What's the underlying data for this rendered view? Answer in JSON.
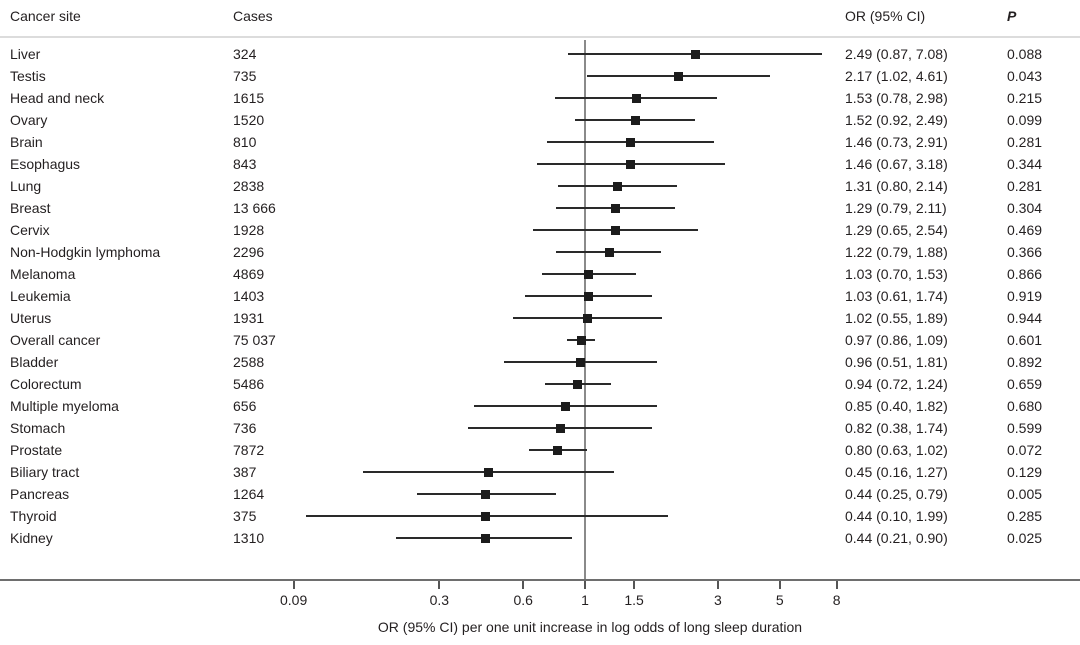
{
  "colors": {
    "text": "#231f20",
    "marker": "#1c1c1c",
    "ci_line": "#2a2a2a",
    "axis_line": "#6e6e6e",
    "reference_line": "#8a8a8a",
    "header_rule": "#dcdcdc",
    "background": "#ffffff"
  },
  "chart_data": {
    "type": "forest",
    "column_headers": {
      "site": "Cancer site",
      "cases": "Cases",
      "or_ci": "OR (95% CI)",
      "p": "P"
    },
    "xlabel": "OR (95% CI) per one unit increase in log odds of long sleep duration",
    "x_axis": {
      "scale": "log",
      "tick_values": [
        0.09,
        0.3,
        0.6,
        1,
        1.5,
        3,
        5,
        8
      ],
      "tick_labels": [
        "0.09",
        "0.3",
        "0.6",
        "1",
        "1.5",
        "3",
        "5",
        "8"
      ],
      "reference_line": 1
    },
    "legend": null,
    "grid": false,
    "rows": [
      {
        "site": "Liver",
        "cases": "324",
        "or": 2.49,
        "lo": 0.87,
        "hi": 7.08,
        "or_ci": "2.49 (0.87, 7.08)",
        "p": "0.088"
      },
      {
        "site": "Testis",
        "cases": "735",
        "or": 2.17,
        "lo": 1.02,
        "hi": 4.61,
        "or_ci": "2.17 (1.02, 4.61)",
        "p": "0.043"
      },
      {
        "site": "Head and neck",
        "cases": "1615",
        "or": 1.53,
        "lo": 0.78,
        "hi": 2.98,
        "or_ci": "1.53 (0.78, 2.98)",
        "p": "0.215"
      },
      {
        "site": "Ovary",
        "cases": "1520",
        "or": 1.52,
        "lo": 0.92,
        "hi": 2.49,
        "or_ci": "1.52 (0.92, 2.49)",
        "p": "0.099"
      },
      {
        "site": "Brain",
        "cases": "810",
        "or": 1.46,
        "lo": 0.73,
        "hi": 2.91,
        "or_ci": "1.46 (0.73, 2.91)",
        "p": "0.281"
      },
      {
        "site": "Esophagus",
        "cases": "843",
        "or": 1.46,
        "lo": 0.67,
        "hi": 3.18,
        "or_ci": "1.46 (0.67, 3.18)",
        "p": "0.344"
      },
      {
        "site": "Lung",
        "cases": "2838",
        "or": 1.31,
        "lo": 0.8,
        "hi": 2.14,
        "or_ci": "1.31 (0.80, 2.14)",
        "p": "0.281"
      },
      {
        "site": "Breast",
        "cases": "13 666",
        "or": 1.29,
        "lo": 0.79,
        "hi": 2.11,
        "or_ci": "1.29 (0.79, 2.11)",
        "p": "0.304"
      },
      {
        "site": "Cervix",
        "cases": "1928",
        "or": 1.29,
        "lo": 0.65,
        "hi": 2.54,
        "or_ci": "1.29 (0.65, 2.54)",
        "p": "0.469"
      },
      {
        "site": "Non-Hodgkin lymphoma",
        "cases": "2296",
        "or": 1.22,
        "lo": 0.79,
        "hi": 1.88,
        "or_ci": "1.22 (0.79, 1.88)",
        "p": "0.366"
      },
      {
        "site": "Melanoma",
        "cases": "4869",
        "or": 1.03,
        "lo": 0.7,
        "hi": 1.53,
        "or_ci": "1.03 (0.70, 1.53)",
        "p": "0.866"
      },
      {
        "site": "Leukemia",
        "cases": "1403",
        "or": 1.03,
        "lo": 0.61,
        "hi": 1.74,
        "or_ci": "1.03 (0.61, 1.74)",
        "p": "0.919"
      },
      {
        "site": "Uterus",
        "cases": "1931",
        "or": 1.02,
        "lo": 0.55,
        "hi": 1.89,
        "or_ci": "1.02 (0.55, 1.89)",
        "p": "0.944"
      },
      {
        "site": "Overall cancer",
        "cases": "75 037",
        "or": 0.97,
        "lo": 0.86,
        "hi": 1.09,
        "or_ci": "0.97 (0.86, 1.09)",
        "p": "0.601"
      },
      {
        "site": "Bladder",
        "cases": "2588",
        "or": 0.96,
        "lo": 0.51,
        "hi": 1.81,
        "or_ci": "0.96 (0.51, 1.81)",
        "p": "0.892"
      },
      {
        "site": "Colorectum",
        "cases": "5486",
        "or": 0.94,
        "lo": 0.72,
        "hi": 1.24,
        "or_ci": "0.94 (0.72, 1.24)",
        "p": "0.659"
      },
      {
        "site": "Multiple myeloma",
        "cases": "656",
        "or": 0.85,
        "lo": 0.4,
        "hi": 1.82,
        "or_ci": "0.85 (0.40, 1.82)",
        "p": "0.680"
      },
      {
        "site": "Stomach",
        "cases": "736",
        "or": 0.82,
        "lo": 0.38,
        "hi": 1.74,
        "or_ci": "0.82 (0.38, 1.74)",
        "p": "0.599"
      },
      {
        "site": "Prostate",
        "cases": "7872",
        "or": 0.8,
        "lo": 0.63,
        "hi": 1.02,
        "or_ci": "0.80 (0.63, 1.02)",
        "p": "0.072"
      },
      {
        "site": "Biliary tract",
        "cases": "387",
        "or": 0.45,
        "lo": 0.16,
        "hi": 1.27,
        "or_ci": "0.45 (0.16, 1.27)",
        "p": "0.129"
      },
      {
        "site": "Pancreas",
        "cases": "1264",
        "or": 0.44,
        "lo": 0.25,
        "hi": 0.79,
        "or_ci": "0.44 (0.25, 0.79)",
        "p": "0.005"
      },
      {
        "site": "Thyroid",
        "cases": "375",
        "or": 0.44,
        "lo": 0.1,
        "hi": 1.99,
        "or_ci": "0.44 (0.10, 1.99)",
        "p": "0.285"
      },
      {
        "site": "Kidney",
        "cases": "1310",
        "or": 0.44,
        "lo": 0.21,
        "hi": 0.9,
        "or_ci": "0.44 (0.21, 0.90)",
        "p": "0.025"
      }
    ]
  }
}
